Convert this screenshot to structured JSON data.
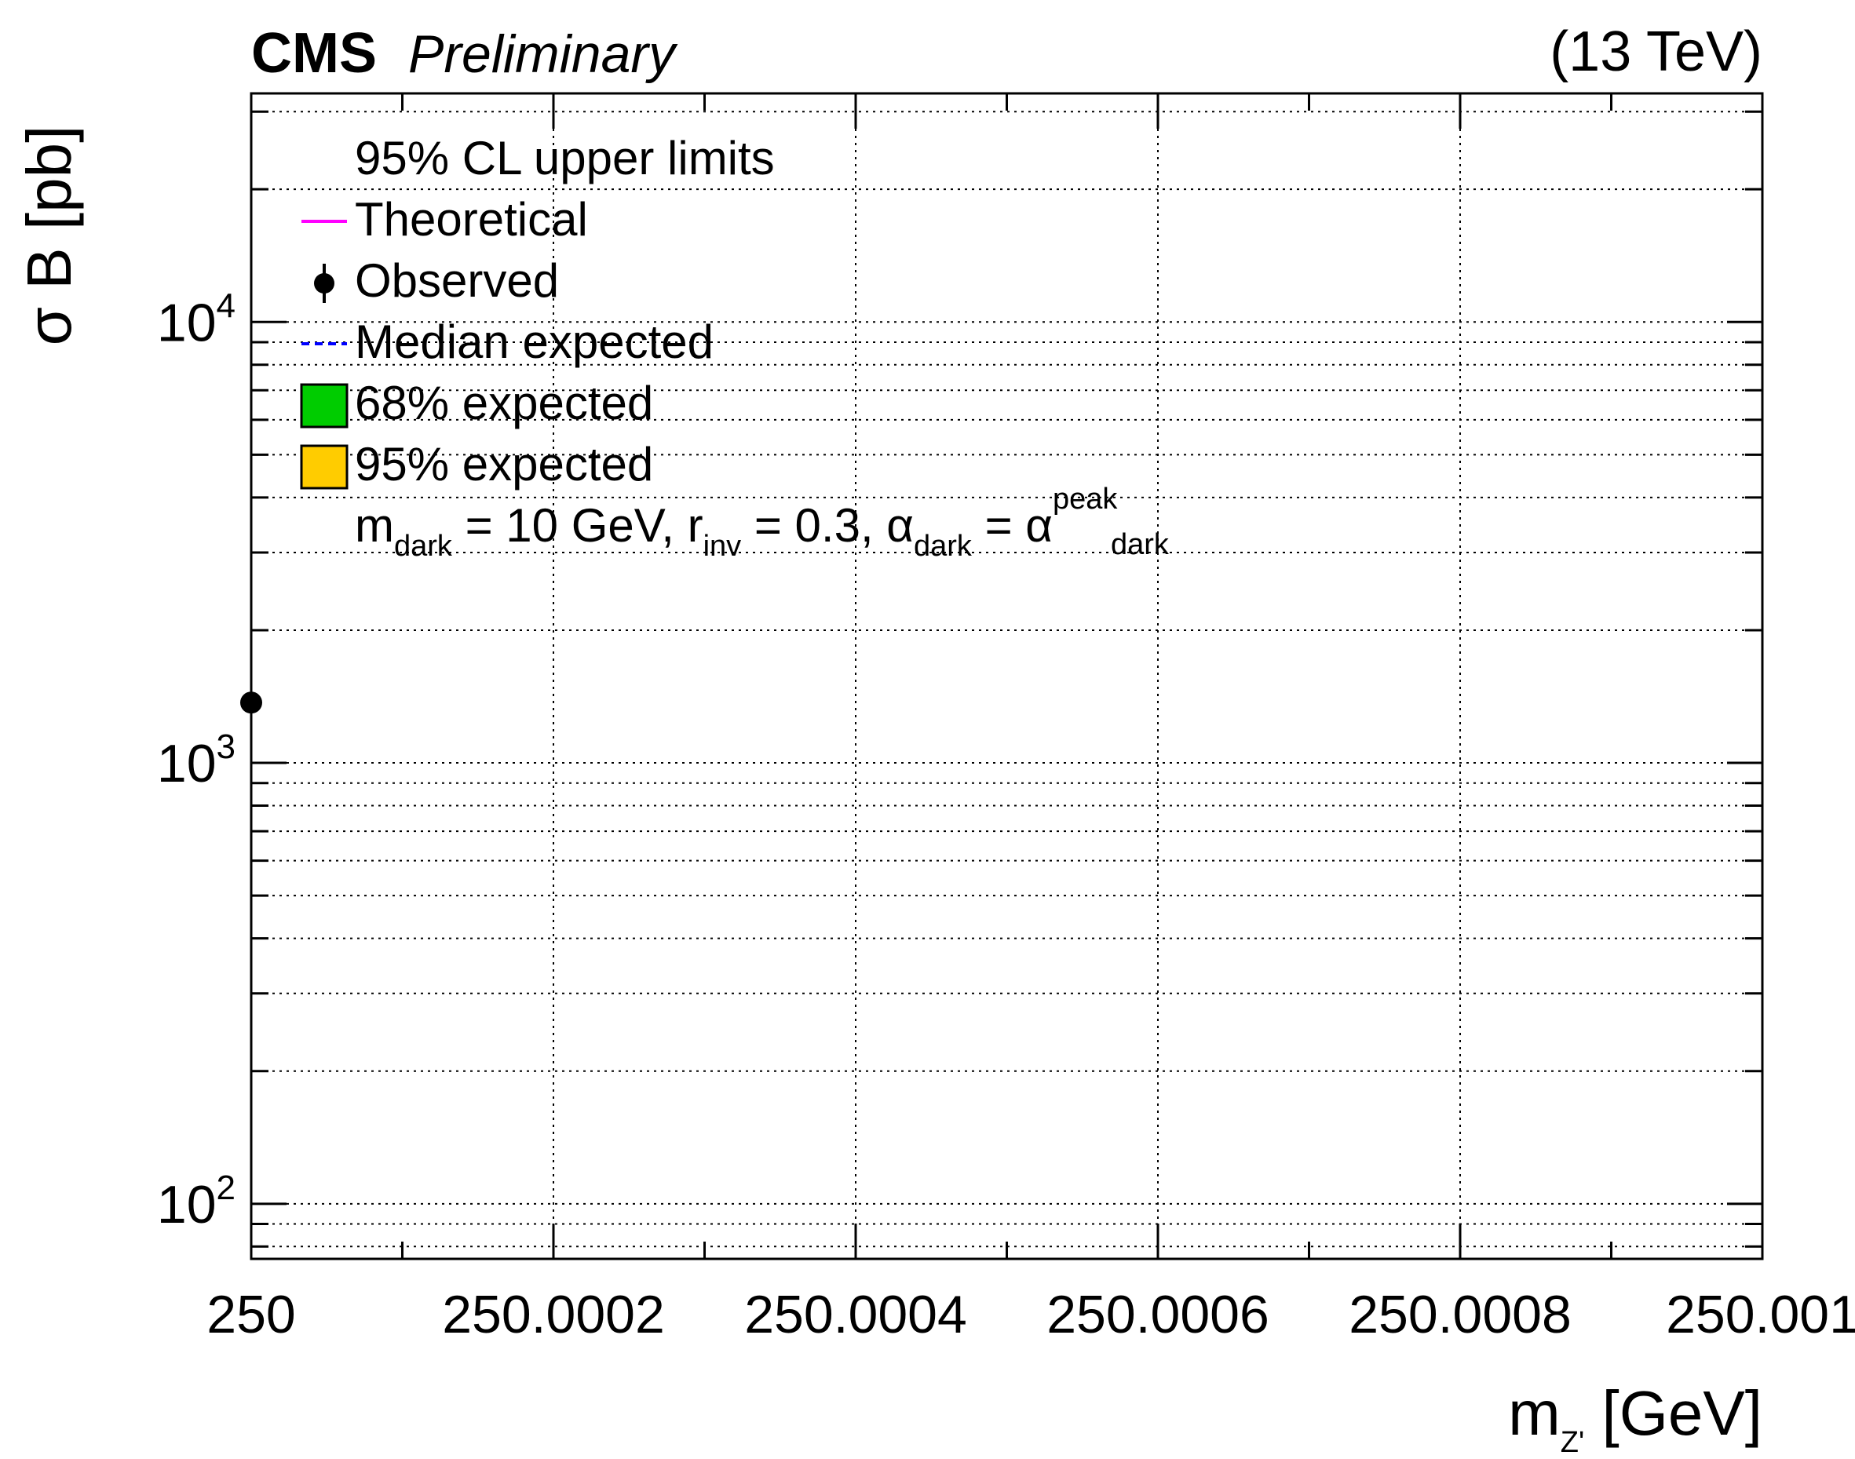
{
  "chart_data": {
    "type": "scatter",
    "experiment": "CMS",
    "status": "Preliminary",
    "energy": "(13 TeV)",
    "xlabel": {
      "main": "m",
      "sub": "Z'",
      "unit": " [GeV]"
    },
    "ylabel": "σ B [pb]",
    "xlim": [
      250,
      250.001
    ],
    "ylim": [
      75,
      33000
    ],
    "yscale": "log",
    "grid": true,
    "x_tick_labels": [
      "250",
      "250.0002",
      "250.0004",
      "250.0006",
      "250.0008",
      "250.001"
    ],
    "x_ticks": [
      250,
      250.0002,
      250.0004,
      250.0006,
      250.0008,
      250.001
    ],
    "y_tick_labels": [
      {
        "base": "10",
        "exp": "2",
        "value": 100
      },
      {
        "base": "10",
        "exp": "3",
        "value": 1000
      },
      {
        "base": "10",
        "exp": "4",
        "value": 10000
      }
    ],
    "legend_placement": "top-left",
    "legend": {
      "header": "95% CL upper limits",
      "entries": [
        {
          "label": "Theoretical",
          "style": "line",
          "color": "#ff00ff"
        },
        {
          "label": "Observed",
          "style": "marker",
          "color": "#000000"
        },
        {
          "label": "Median expected",
          "style": "dashed",
          "color": "#0000ff"
        },
        {
          "label": "68% expected",
          "style": "box",
          "color": "#00cc00"
        },
        {
          "label": "95% expected",
          "style": "box",
          "color": "#ffcc00"
        }
      ],
      "params": {
        "m": "m",
        "m_sub": "dark",
        "m_val": " = 10 GeV, ",
        "r": "r",
        "r_sub": "inv",
        "r_val": " = 0.3, ",
        "a": "α",
        "a_sub": "dark",
        "eq": " = ",
        "a2": "α",
        "a2_sub": "dark",
        "a2_sup": "peak"
      }
    },
    "series": [
      {
        "name": "Observed",
        "points": [
          {
            "x": 250,
            "y": 1370
          }
        ]
      }
    ]
  }
}
